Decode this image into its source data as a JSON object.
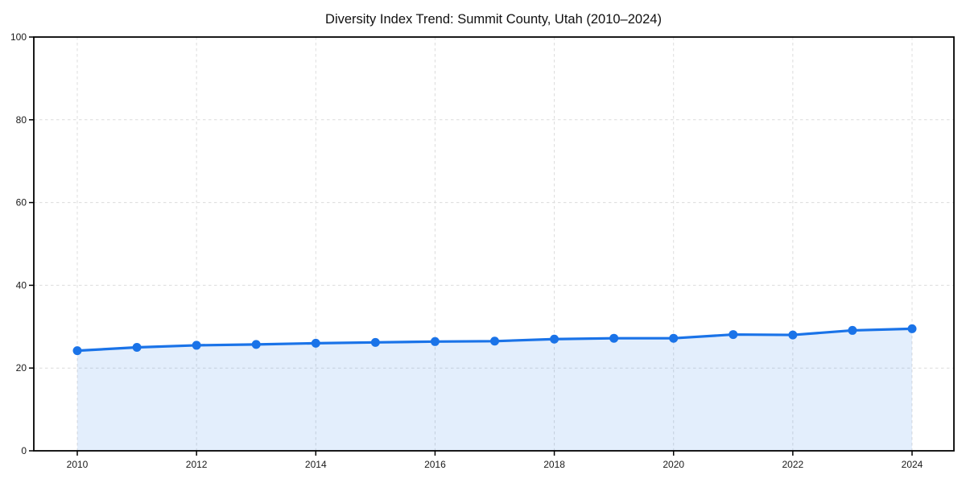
{
  "page": {
    "title": "Diversity Index Trend: Summit County, Utah (2010–2024)"
  },
  "chart_data": {
    "type": "area",
    "title": "Diversity Index Trend: Summit County, Utah (2010–2024)",
    "x": [
      2010,
      2011,
      2012,
      2013,
      2014,
      2015,
      2016,
      2017,
      2018,
      2019,
      2020,
      2021,
      2022,
      2023,
      2024
    ],
    "values": [
      24.2,
      25.0,
      25.5,
      25.7,
      26.0,
      26.2,
      26.4,
      26.5,
      27.0,
      27.2,
      27.2,
      28.1,
      28.0,
      29.1,
      29.5
    ],
    "xlabel": "",
    "ylabel": "",
    "xlim": [
      2010,
      2024
    ],
    "ylim": [
      0,
      100
    ],
    "xticks": [
      2010,
      2012,
      2014,
      2016,
      2018,
      2020,
      2022,
      2024
    ],
    "yticks": [
      0,
      20,
      40,
      60,
      80,
      100
    ],
    "grid": true,
    "grid_style": "dashed",
    "legend": "none",
    "marker": "circle",
    "colors": {
      "line": "#1a73e8",
      "marker": "#1a73e8",
      "fill": "rgba(26,115,232,0.12)",
      "grid": "#dcdcdc",
      "axis": "#000000",
      "tick_label": "#1a1a1a",
      "title": "#111111",
      "background": "#ffffff"
    }
  }
}
